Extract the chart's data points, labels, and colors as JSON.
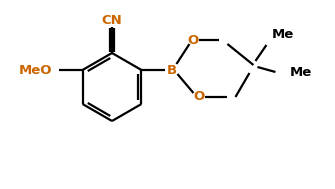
{
  "bg_color": "#ffffff",
  "line_color": "#000000",
  "orange_color": "#cc6600",
  "black_color": "#000000",
  "atom_B": "B",
  "atom_O1": "O",
  "atom_O2": "O",
  "atom_CN": "CN",
  "atom_MeO": "MeO",
  "atom_Me1": "Me",
  "atom_Me2": "Me",
  "figsize": [
    3.35,
    1.89
  ],
  "dpi": 100,
  "lw": 1.6
}
